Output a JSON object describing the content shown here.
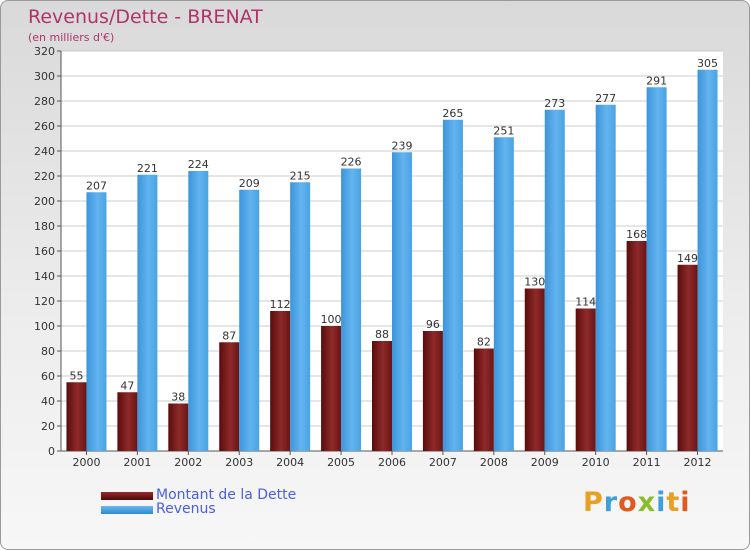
{
  "header": {
    "title": "Revenus/Dette - BRENAT",
    "subtitle": "(en milliers d'€)"
  },
  "legend": {
    "items": [
      {
        "label": "Montant de la Dette",
        "color": "#7a1a1a"
      },
      {
        "label": "Revenus",
        "color": "#4aa3e4"
      }
    ]
  },
  "logo": {
    "text": "Proxiti",
    "letter_colors": [
      "#e8a020",
      "#3f9fd8",
      "#e05a20",
      "#8abd2a",
      "#3f9fd8",
      "#e8a020",
      "#e05a20"
    ]
  },
  "chart_data": {
    "type": "bar",
    "title": "Revenus/Dette - BRENAT",
    "subtitle": "(en milliers d'€)",
    "categories": [
      "2000",
      "2001",
      "2002",
      "2003",
      "2004",
      "2005",
      "2006",
      "2007",
      "2008",
      "2009",
      "2010",
      "2011",
      "2012"
    ],
    "series": [
      {
        "name": "Montant de la Dette",
        "color": "#7a1a1a",
        "values": [
          55,
          47,
          38,
          87,
          112,
          100,
          88,
          96,
          82,
          130,
          114,
          168,
          149
        ]
      },
      {
        "name": "Revenus",
        "color": "#4aa3e4",
        "values": [
          207,
          221,
          224,
          209,
          215,
          226,
          239,
          265,
          251,
          273,
          277,
          291,
          305
        ]
      }
    ],
    "ylim": [
      0,
      320
    ],
    "yticks": [
      0,
      20,
      40,
      60,
      80,
      100,
      120,
      140,
      160,
      180,
      200,
      220,
      240,
      260,
      280,
      300,
      320
    ],
    "grid": true,
    "legend_position": "bottom-left"
  }
}
